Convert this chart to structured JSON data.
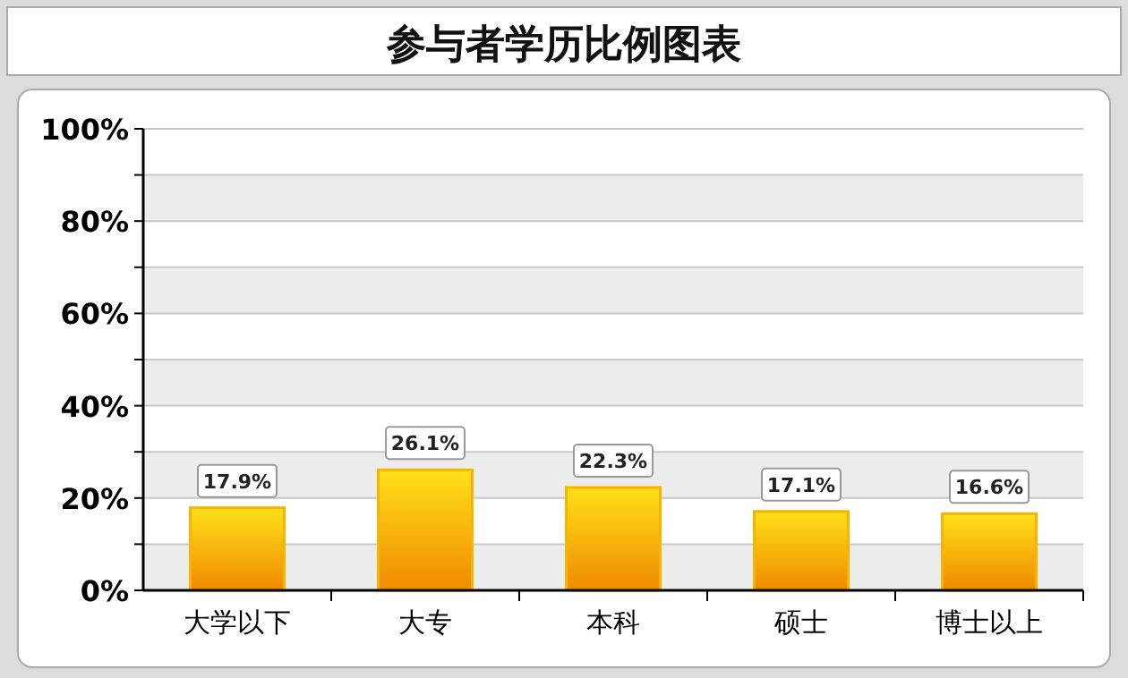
{
  "chart_data": {
    "type": "bar",
    "title": "参与者学历比例图表",
    "categories": [
      "大学以下",
      "大专",
      "本科",
      "硕士",
      "博士以上"
    ],
    "values": [
      17.9,
      26.1,
      22.3,
      17.1,
      16.6
    ],
    "color": "#f7b500",
    "value_labels": [
      "17.9%",
      "26.1%",
      "22.3%",
      "17.1%",
      "16.6%"
    ],
    "ylim": [
      0,
      100
    ],
    "yticks": [
      {
        "value": 0,
        "label": "0%"
      },
      {
        "value": 10,
        "label": null
      },
      {
        "value": 20,
        "label": "20%"
      },
      {
        "value": 30,
        "label": null
      },
      {
        "value": 40,
        "label": "40%"
      },
      {
        "value": 50,
        "label": null
      },
      {
        "value": 60,
        "label": "60%"
      },
      {
        "value": 70,
        "label": null
      },
      {
        "value": 80,
        "label": "80%"
      },
      {
        "value": 90,
        "label": null
      },
      {
        "value": 100,
        "label": "100%"
      }
    ],
    "grid": true
  }
}
